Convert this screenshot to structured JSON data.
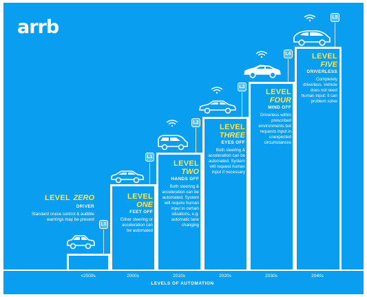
{
  "brand": "arrb",
  "axis_title": "LEVELS OF AUTOMATION",
  "decades": [
    "<2000s",
    "2000s",
    "2010s",
    "2020s",
    "2030s",
    "2040s"
  ],
  "levels": [
    {
      "badge": "L0",
      "word1": "LEVEL",
      "word2": "ZERO",
      "subtitle": "DRIVER",
      "description": "Standard cruise control & audible warnings may be present"
    },
    {
      "badge": "L1",
      "word1": "LEVEL",
      "word2": "ONE",
      "subtitle": "FEET OFF",
      "description": "Either steering or acceleration can be automated"
    },
    {
      "badge": "L2",
      "word1": "LEVEL",
      "word2": "TWO",
      "subtitle": "HANDS OFF",
      "description": "Both steering & acceleration can be automated. System will require human input in certain situations, e.g. automatic lane changing"
    },
    {
      "badge": "L3",
      "word1": "LEVEL",
      "word2": "THREE",
      "subtitle": "EYES OFF",
      "description": "Both steering & acceleration can be automated. System will request human input if necessary"
    },
    {
      "badge": "L4",
      "word1": "LEVEL",
      "word2": "FOUR",
      "subtitle": "MIND OFF",
      "description": "Driverless within prescribed environments but requests input in unexpected circumstances"
    },
    {
      "badge": "L5",
      "word1": "LEVEL",
      "word2": "FIVE",
      "subtitle": "DRIVERLESS",
      "description": "Completely driverless. Vehicle does not need human input; it can problem solve"
    }
  ],
  "colors": {
    "background": "#0a9ef0",
    "accent": "#ffe34a",
    "text": "#ffffff",
    "badge": "#4fc0f7"
  },
  "icons": [
    "car-icon",
    "wifi-icon",
    "hexagon-badge-icon"
  ]
}
